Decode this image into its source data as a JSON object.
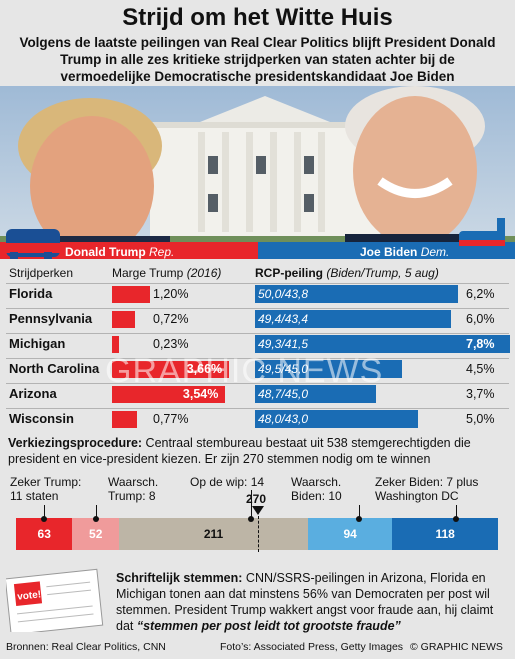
{
  "title": "Strijd om het Witte Huis",
  "subtitle": "Volgens de laatste peilingen van Real Clear Politics blijft President Donald Trump in alle zes kritieke strijdperken van staten achter bij de vermoedelijke Democratische presidentskandidaat Joe Biden",
  "candidates": {
    "trump": {
      "name": "Donald Trump",
      "party": "Rep."
    },
    "biden": {
      "name": "Joe Biden",
      "party": "Dem."
    }
  },
  "table_headers": {
    "states": "Strijdperken",
    "margin": "Marge Trump",
    "margin_year": "(2016)",
    "rcp": "RCP-peiling",
    "rcp_note": "(Biden/Trump, 5 aug)"
  },
  "watermark": "GRAPHIC NEWS",
  "colors": {
    "rep": "#e8262b",
    "dem": "#1a6cb4",
    "lean_rep": "#f09b9b",
    "tossup": "#bdb5a6",
    "lean_dem": "#5aaee0"
  },
  "chart_data": [
    {
      "type": "bar",
      "title": "",
      "categories": [
        "Florida",
        "Pennsylvania",
        "Michigan",
        "North Carolina",
        "Arizona",
        "Wisconsin"
      ],
      "series": [
        {
          "name": "Marge Trump (2016)",
          "values": [
            1.2,
            0.72,
            0.23,
            3.66,
            3.54,
            0.77
          ],
          "labels": [
            "1,20%",
            "0,72%",
            "0,23%",
            "3,66%",
            "3,54%",
            "0,77%"
          ]
        },
        {
          "name": "RCP-peiling (Biden/Trump, 5 aug)",
          "values": [
            6.2,
            6.0,
            7.8,
            4.5,
            3.7,
            5.0
          ],
          "labels": [
            "6,2%",
            "6,0%",
            "7,8%",
            "4,5%",
            "3,7%",
            "5,0%"
          ],
          "polls": [
            "50,0/43,8",
            "49,4/43,4",
            "49,3/41,5",
            "49,5/45,0",
            "48,7/45,0",
            "48,0/43,0"
          ]
        }
      ]
    },
    {
      "type": "bar",
      "title": "",
      "categories": [
        "Zeker Trump",
        "Waarsch. Trump",
        "Op de wip",
        "Waarsch. Biden",
        "Zeker Biden"
      ],
      "values": [
        63,
        52,
        211,
        94,
        118
      ],
      "threshold": 270
    }
  ],
  "procedure": {
    "label": "Verkiezingsprocedure:",
    "text": " Centraal stembureau bestaat uit 538 stemgerechtigden die president en vice-president kiezen. Er zijn 270 stemmen nodig om te winnen"
  },
  "electoral_labels": {
    "sure_trump": [
      "Zeker Trump:",
      "11 staten"
    ],
    "lean_trump": [
      "Waarsch.",
      "Trump: 8"
    ],
    "tossup": [
      "Op de wip: 14"
    ],
    "lean_biden": [
      "Waarsch.",
      "Biden: 10"
    ],
    "sure_biden": [
      "Zeker Biden: 7 plus",
      "Washington DC"
    ],
    "threshold": "270"
  },
  "mail": {
    "label": "Schriftelijk stemmen:",
    "text": " CNN/SSRS-peilingen in Arizona, Florida en Michigan tonen aan dat minstens 56% van Democraten per post wil stemmen. President Trump wakkert angst voor fraude aan, hij claimt dat ",
    "quote": "“stemmen per post leidt tot grootste fraude”",
    "envelope": "vote!"
  },
  "footer": {
    "sources": "Bronnen: Real Clear Politics, CNN",
    "photos": "Foto’s: Associated Press, Getty Images",
    "credit": "© GRAPHIC NEWS"
  }
}
